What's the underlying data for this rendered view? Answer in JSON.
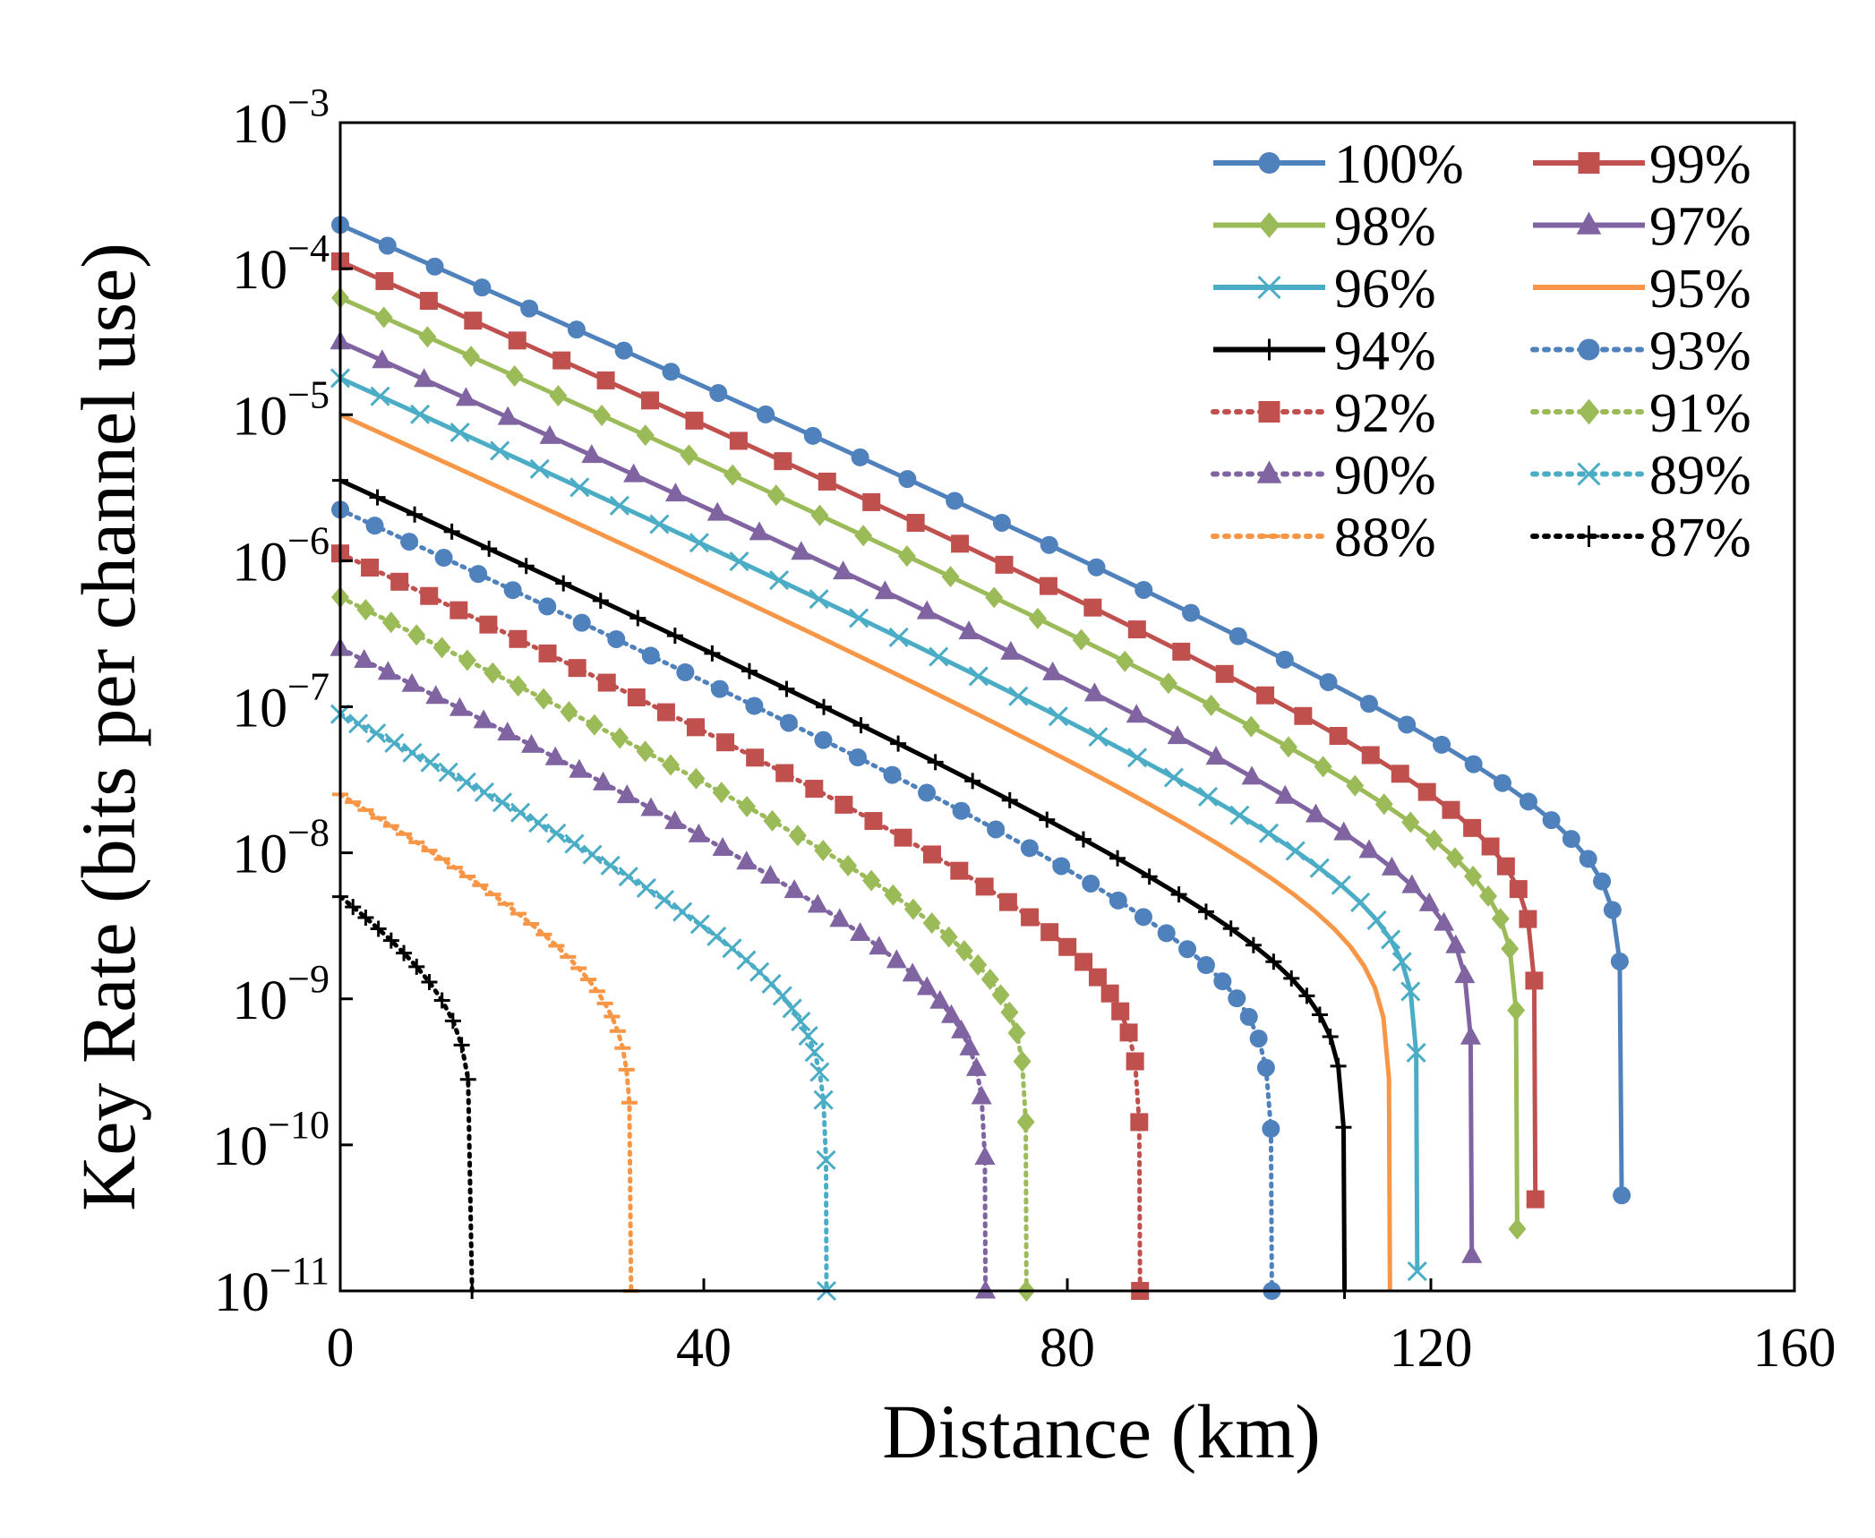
{
  "chart_data": {
    "type": "line",
    "xlabel": "Distance (km)",
    "ylabel": "Key Rate (bits per channel use)",
    "xlim": [
      0,
      160
    ],
    "ylim": [
      1e-11,
      0.001
    ],
    "yscale": "log",
    "xticks": [
      0,
      40,
      80,
      120,
      160
    ],
    "xtick_labels": [
      "0",
      "40",
      "80",
      "120",
      "160"
    ],
    "yticks": [
      {
        "base": "10",
        "exp": "−3",
        "value": 0.001
      },
      {
        "base": "10",
        "exp": "−4",
        "value": 0.0001
      },
      {
        "base": "10",
        "exp": "−5",
        "value": 1e-05
      },
      {
        "base": "10",
        "exp": "−6",
        "value": 1e-06
      },
      {
        "base": "10",
        "exp": "−7",
        "value": 1e-07
      },
      {
        "base": "10",
        "exp": "−8",
        "value": 1e-08
      },
      {
        "base": "10",
        "exp": "−9",
        "value": 1e-09
      },
      {
        "base": "10",
        "exp": "−10",
        "value": 1e-10
      },
      {
        "base": "10",
        "exp": "−11",
        "value": 1e-11
      }
    ],
    "grid": false,
    "legend_position": "top-right",
    "series": [
      {
        "name": "100%",
        "color": "#4F81BD",
        "marker": "circle",
        "dash": "solid",
        "start_exp": -3.7,
        "cutoff": 141
      },
      {
        "name": "99%",
        "color": "#C0504D",
        "marker": "square",
        "dash": "solid",
        "start_exp": -3.95,
        "cutoff": 131.5
      },
      {
        "name": "98%",
        "color": "#9BBB59",
        "marker": "diamond",
        "dash": "solid",
        "start_exp": -4.2,
        "cutoff": 129.5
      },
      {
        "name": "97%",
        "color": "#8064A2",
        "marker": "triangle",
        "dash": "solid",
        "start_exp": -4.5,
        "cutoff": 124.5
      },
      {
        "name": "96%",
        "color": "#4BACC6",
        "marker": "x",
        "dash": "solid",
        "start_exp": -4.75,
        "cutoff": 118.5
      },
      {
        "name": "95%",
        "color": "#F79646",
        "marker": "none",
        "dash": "solid",
        "start_exp": -5.0,
        "cutoff": 115.5
      },
      {
        "name": "94%",
        "color": "#000000",
        "marker": "plus",
        "dash": "solid",
        "start_exp": -5.45,
        "cutoff": 110.5
      },
      {
        "name": "93%",
        "color": "#4F81BD",
        "marker": "circle",
        "dash": "dotted",
        "start_exp": -5.65,
        "cutoff": 102.5
      },
      {
        "name": "92%",
        "color": "#C0504D",
        "marker": "square",
        "dash": "dotted",
        "start_exp": -5.95,
        "cutoff": 88
      },
      {
        "name": "91%",
        "color": "#9BBB59",
        "marker": "diamond",
        "dash": "dotted",
        "start_exp": -6.25,
        "cutoff": 75.5
      },
      {
        "name": "90%",
        "color": "#8064A2",
        "marker": "triangle",
        "dash": "dotted",
        "start_exp": -6.6,
        "cutoff": 71
      },
      {
        "name": "89%",
        "color": "#4BACC6",
        "marker": "x",
        "dash": "dotted",
        "start_exp": -7.05,
        "cutoff": 53.5
      },
      {
        "name": "88%",
        "color": "#F79646",
        "marker": "dash",
        "dash": "dotted",
        "start_exp": -7.6,
        "cutoff": 32
      },
      {
        "name": "87%",
        "color": "#000000",
        "marker": "plus",
        "dash": "dotted",
        "start_exp": -8.3,
        "cutoff": 14.5
      }
    ]
  }
}
